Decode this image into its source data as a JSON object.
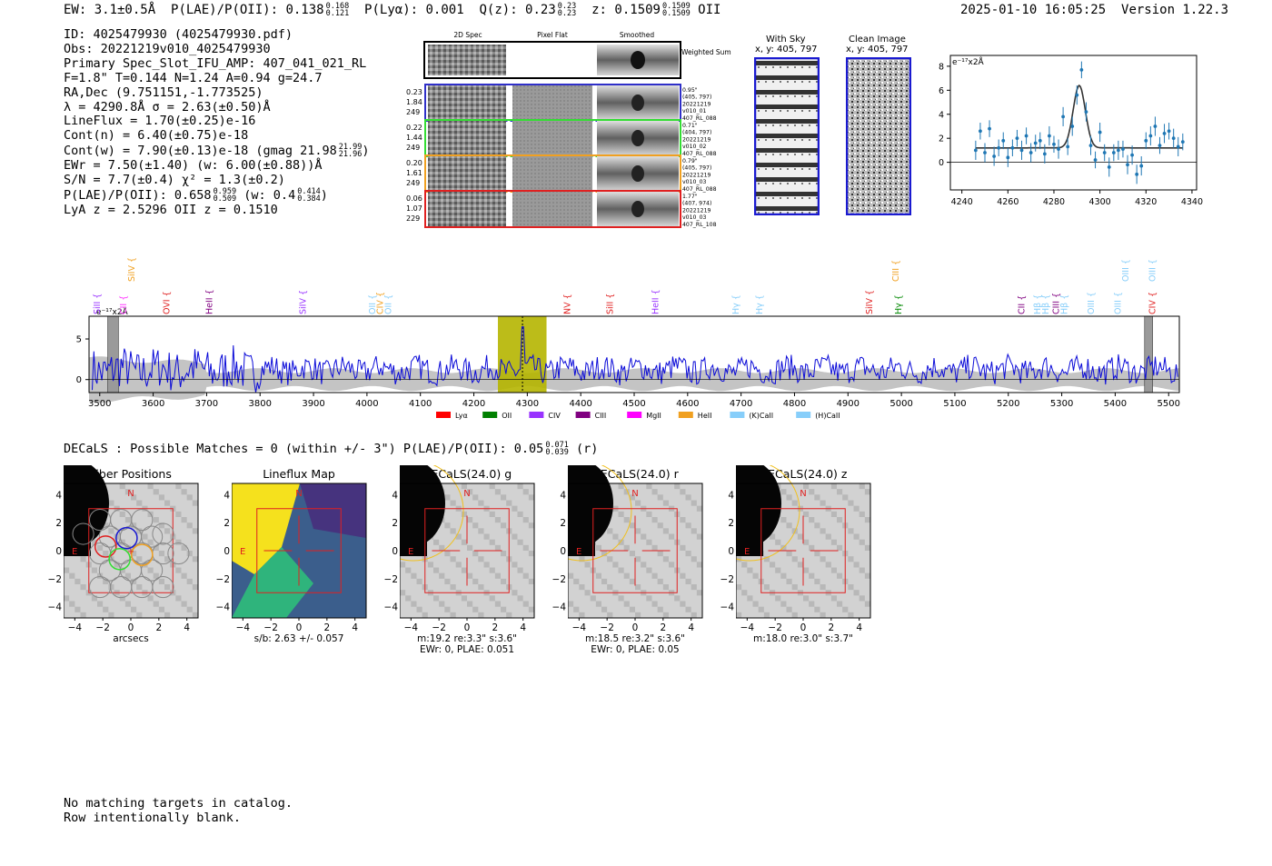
{
  "header": {
    "ew": "EW: 3.1±0.5Å",
    "plae_label": "P(LAE)/P(OII): 0.138",
    "plae_hi": "0.168",
    "plae_lo": "0.121",
    "plya": "P(Lyα): 0.001",
    "qz_label": "Q(z): 0.23",
    "qz_hi": "0.23",
    "qz_lo": "0.23",
    "z_label": "z: 0.1509",
    "z_hi": "0.1509",
    "z_lo": "0.1509",
    "z_line": "OII",
    "timestamp": "2025-01-10 16:05:25",
    "version": "Version 1.22.3"
  },
  "info": {
    "id": "ID: 4025479930 (4025479930.pdf)",
    "obs": "Obs: 20221219v010_4025479930",
    "primary": "Primary Spec_Slot_IFU_AMP: 407_041_021_RL",
    "fiber": "F=1.8\"  T=0.144  N=1.24  A=0.94  g=24.7",
    "radec": "RA,Dec (9.751151,-1.773525)",
    "lambda": "λ = 4290.8Å   σ = 2.63(±0.50)Å",
    "lineflux": "LineFlux = 1.70(±0.25)e-16",
    "contn": "Cont(n) = 6.40(±0.75)e-18",
    "contw": "Cont(w) = 7.90(±0.13)e-18 (gmag 21.98",
    "contw_hi": "21.99",
    "contw_lo": "21.96",
    "ewr": "EWr = 7.50(±1.40) (w: 6.00(±0.88))Å",
    "sn": "S/N = 7.7(±0.4)  χ² = 1.3(±0.2)",
    "plae": "P(LAE)/P(OII): 0.658",
    "plae_hi": "0.959",
    "plae_lo": "0.509",
    "plae_w": "(w: 0.4",
    "plae_w_hi": "0.414",
    "plae_w_lo": "0.384",
    "lyaz": "LyA z = 2.5296  OII z = 0.1510"
  },
  "cutouts": {
    "col_2d": "2D Spec",
    "col_flat": "Pixel Flat",
    "col_smooth": "Smoothed",
    "weighted": "Weighted Sum",
    "rows": [
      {
        "a": "0.23",
        "b": "1.84",
        "c": "249",
        "color": "#2f2fc8",
        "meta": [
          "0.95\"",
          "(405, 797)",
          "20221219",
          "v010_01",
          "407_RL_088"
        ]
      },
      {
        "a": "0.22",
        "b": "1.44",
        "c": "249",
        "color": "#33dd33",
        "meta": [
          "0.71\"",
          "(404, 797)",
          "20221219",
          "v010_02",
          "407_RL_088"
        ]
      },
      {
        "a": "0.20",
        "b": "1.61",
        "c": "249",
        "color": "#f0a020",
        "meta": [
          "0.79\"",
          "(405, 797)",
          "20221219",
          "v010_03",
          "407_RL_088"
        ]
      },
      {
        "a": "0.06",
        "b": "1.07",
        "c": "229",
        "color": "#e02020",
        "meta": [
          "1.77\"",
          "(407, 974)",
          "20221219",
          "v010_03",
          "407_RL_108"
        ]
      }
    ],
    "with_sky": "With Sky",
    "with_sky_xy": "x, y: 405, 797",
    "clean": "Clean Image",
    "clean_xy": "x, y: 405, 797"
  },
  "fit_chart": {
    "type": "scatter",
    "unit_label": "e⁻¹⁷x2Å",
    "xlim": [
      4235,
      4342
    ],
    "ylim": [
      -2.3,
      8.9
    ],
    "xticks": [
      4240,
      4260,
      4280,
      4300,
      4320,
      4340
    ],
    "yticks": [
      0,
      2,
      4,
      6,
      8
    ],
    "x": [
      4246,
      4248,
      4250,
      4252,
      4254,
      4256,
      4258,
      4260,
      4262,
      4264,
      4266,
      4268,
      4270,
      4272,
      4274,
      4276,
      4278,
      4280,
      4282,
      4284,
      4286,
      4288,
      4290,
      4292,
      4294,
      4296,
      4298,
      4300,
      4302,
      4304,
      4306,
      4308,
      4310,
      4312,
      4314,
      4316,
      4318,
      4320,
      4322,
      4324,
      4326,
      4328,
      4330,
      4332,
      4334,
      4336
    ],
    "y": [
      1.0,
      2.6,
      0.8,
      2.8,
      0.5,
      1.2,
      1.8,
      0.4,
      1.2,
      2.0,
      1.0,
      2.2,
      0.8,
      1.6,
      1.8,
      0.7,
      2.2,
      1.5,
      1.1,
      3.8,
      1.3,
      3.0,
      5.6,
      7.7,
      4.2,
      1.4,
      0.2,
      2.5,
      0.8,
      -0.4,
      0.8,
      1.0,
      1.1,
      -0.2,
      0.6,
      -1.0,
      -0.3,
      1.8,
      2.2,
      3.0,
      1.4,
      2.4,
      2.6,
      2.0,
      1.3,
      1.7
    ],
    "err": [
      0.8,
      0.7,
      0.8,
      0.7,
      0.8,
      0.7,
      0.7,
      0.8,
      0.7,
      0.7,
      0.8,
      0.7,
      0.8,
      0.7,
      0.7,
      0.8,
      0.8,
      0.7,
      0.8,
      0.8,
      0.7,
      0.8,
      0.8,
      0.7,
      0.8,
      0.8,
      0.7,
      0.8,
      0.7,
      0.8,
      0.7,
      0.8,
      0.7,
      0.8,
      0.8,
      0.8,
      0.8,
      0.7,
      0.8,
      0.8,
      0.7,
      0.8,
      0.7,
      0.8,
      0.8,
      0.7
    ],
    "model": {
      "center": 4291,
      "sigma": 2.63,
      "amp": 5.2,
      "continuum": 1.2,
      "x_range": [
        4246,
        4336
      ]
    }
  },
  "spectrum": {
    "type": "line",
    "unit_label": "e⁻¹⁷x2Å",
    "xlim": [
      3480,
      5520
    ],
    "ylim": [
      -1.6,
      7.8
    ],
    "xticks": [
      3500,
      3600,
      3700,
      3800,
      3900,
      4000,
      4100,
      4200,
      4300,
      4400,
      4500,
      4600,
      4700,
      4800,
      4900,
      5000,
      5100,
      5200,
      5300,
      5400,
      5500
    ],
    "yticks": [
      0,
      5
    ],
    "highlight_range": [
      4245,
      4336
    ],
    "marker": 4291,
    "bad_bands": [
      [
        3515,
        3535
      ],
      [
        5455,
        5470
      ]
    ],
    "lines": [
      {
        "name": "SiII",
        "wave": 3495,
        "color": "#9933ff",
        "level": "low"
      },
      {
        "name": "CII",
        "wave": 3545,
        "color": "#ff33ff",
        "level": "low"
      },
      {
        "name": "SiIV",
        "wave": 3560,
        "color": "#f0a020",
        "level": "high"
      },
      {
        "name": "OVI",
        "wave": 3625,
        "color": "#e02020",
        "level": "low"
      },
      {
        "name": "HeII",
        "wave": 3705,
        "color": "#800080",
        "level": "low"
      },
      {
        "name": "SiIV",
        "wave": 3880,
        "color": "#9933ff",
        "level": "low"
      },
      {
        "name": "OII",
        "wave": 4010,
        "color": "#87cefa",
        "level": "low"
      },
      {
        "name": "CIV",
        "wave": 4025,
        "color": "#f0a020",
        "level": "low"
      },
      {
        "name": "OII",
        "wave": 4040,
        "color": "#87cefa",
        "level": "low"
      },
      {
        "name": "NV",
        "wave": 4375,
        "color": "#e02020",
        "level": "low"
      },
      {
        "name": "SiII",
        "wave": 4455,
        "color": "#e02020",
        "level": "low"
      },
      {
        "name": "HeII",
        "wave": 4540,
        "color": "#9933ff",
        "level": "low"
      },
      {
        "name": "Hγ",
        "wave": 4690,
        "color": "#87cefa",
        "level": "low"
      },
      {
        "name": "Hγ",
        "wave": 4735,
        "color": "#87cefa",
        "level": "low"
      },
      {
        "name": "SiIV",
        "wave": 4940,
        "color": "#e02020",
        "level": "low"
      },
      {
        "name": "CIII",
        "wave": 4990,
        "color": "#f0a020",
        "level": "high"
      },
      {
        "name": "Hγ",
        "wave": 4995,
        "color": "#008800",
        "level": "low"
      },
      {
        "name": "CII",
        "wave": 5225,
        "color": "#800080",
        "level": "low"
      },
      {
        "name": "Hβ",
        "wave": 5255,
        "color": "#87cefa",
        "level": "low"
      },
      {
        "name": "Hβ",
        "wave": 5270,
        "color": "#87cefa",
        "level": "low"
      },
      {
        "name": "CIII",
        "wave": 5290,
        "color": "#800080",
        "level": "low"
      },
      {
        "name": "Hβ",
        "wave": 5305,
        "color": "#87cefa",
        "level": "low"
      },
      {
        "name": "OIII",
        "wave": 5355,
        "color": "#87cefa",
        "level": "low"
      },
      {
        "name": "OIII",
        "wave": 5405,
        "color": "#87cefa",
        "level": "low"
      },
      {
        "name": "OIII",
        "wave": 5420,
        "color": "#87cefa",
        "level": "high"
      },
      {
        "name": "OIII",
        "wave": 5470,
        "color": "#87cefa",
        "level": "high"
      },
      {
        "name": "CIV",
        "wave": 5470,
        "color": "#e02020",
        "level": "low"
      }
    ],
    "legend": [
      {
        "name": "Lyα",
        "color": "#ff0000"
      },
      {
        "name": "OII",
        "color": "#008000"
      },
      {
        "name": "CIV",
        "color": "#9933ff"
      },
      {
        "name": "CIII",
        "color": "#800080"
      },
      {
        "name": "MgII",
        "color": "#ff00ff"
      },
      {
        "name": "HeII",
        "color": "#f0a020"
      },
      {
        "name": "(K)CaII",
        "color": "#87cefa"
      },
      {
        "name": "(H)CaII",
        "color": "#87cefa"
      }
    ]
  },
  "decals": {
    "title": "DECaLS : Possible Matches = 0 (within +/- 3\")  P(LAE)/P(OII): 0.05",
    "plae_hi": "0.071",
    "plae_lo": "0.039",
    "band": "(r)",
    "panels": [
      {
        "title": "Fiber Positions",
        "caption1": "arcsecs",
        "caption2": ""
      },
      {
        "title": "Lineflux Map",
        "caption1": "s/b: 2.63 +/- 0.057",
        "caption2": ""
      },
      {
        "title": "DECaLS(24.0) g",
        "caption1": "m:19.2  re:3.3\"  s:3.6\"",
        "caption2": "EWr: 0, PLAE: 0.051"
      },
      {
        "title": "DECaLS(24.0) r",
        "caption1": "m:18.5  re:3.2\"  s:3.6\"",
        "caption2": "EWr: 0, PLAE: 0.05"
      },
      {
        "title": "DECaLS(24.0) z",
        "caption1": "m:18.0  re:3.0\"  s:3.7\"",
        "caption2": ""
      }
    ],
    "ticks": [
      "−4",
      "−2",
      "0",
      "2",
      "4"
    ],
    "north": "N",
    "east": "E"
  },
  "footer": {
    "line1": "No matching targets in catalog.",
    "line2": "Row intentionally blank."
  }
}
